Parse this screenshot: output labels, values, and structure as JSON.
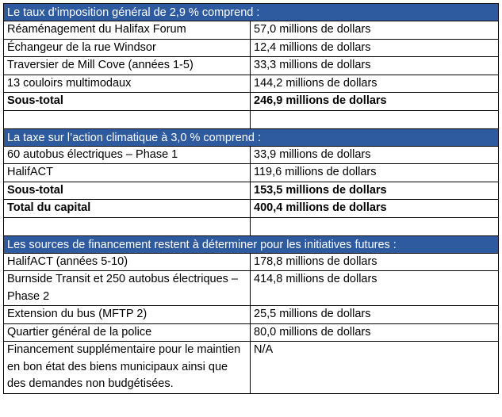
{
  "sections": [
    {
      "header": "Le taux d’imposition général de 2,9 % comprend :",
      "rows": [
        {
          "label": "Réaménagement du Halifax Forum",
          "value": "57,0 millions de dollars"
        },
        {
          "label": "Échangeur de la rue Windsor",
          "value": "12,4 millions de dollars"
        },
        {
          "label": "Traversier de Mill Cove (années 1-5)",
          "value": "33,3 millions de dollars"
        },
        {
          "label": "13 couloirs multimodaux",
          "value": "144,2 millions de dollars"
        }
      ],
      "subtotal": {
        "label": "Sous-total",
        "value": "246,9 millions de dollars"
      }
    },
    {
      "header": "La taxe sur l’action climatique à 3,0 % comprend :",
      "rows": [
        {
          "label": "60 autobus électriques – Phase 1",
          "value": "33,9 millions de dollars"
        },
        {
          "label": "HalifACT",
          "value": "119,6 millions de dollars"
        }
      ],
      "subtotal": {
        "label": "Sous-total",
        "value": "153,5 millions de dollars"
      },
      "total": {
        "label": "Total du capital",
        "value": "400,4 millions de dollars"
      }
    },
    {
      "header": "Les sources de financement restent à déterminer pour les initiatives futures :",
      "rows": [
        {
          "label": "HalifACT (années 5-10)",
          "value": "178,8 millions de dollars"
        },
        {
          "label": "Burnside Transit et 250 autobus électriques – Phase 2",
          "value": "414,8 millions de dollars"
        },
        {
          "label": "Extension du bus (MFTP 2)",
          "value": "25,5 millions de dollars"
        },
        {
          "label": "Quartier général de la police",
          "value": "80,0 millions de dollars"
        },
        {
          "label": "Financement supplémentaire pour le maintien en bon état des biens municipaux ainsi que des demandes non budgétisées.",
          "value": "N/A"
        }
      ]
    }
  ],
  "colors": {
    "header_bg": "#2e5aa0",
    "header_text": "#ffffff",
    "border": "#000000"
  }
}
